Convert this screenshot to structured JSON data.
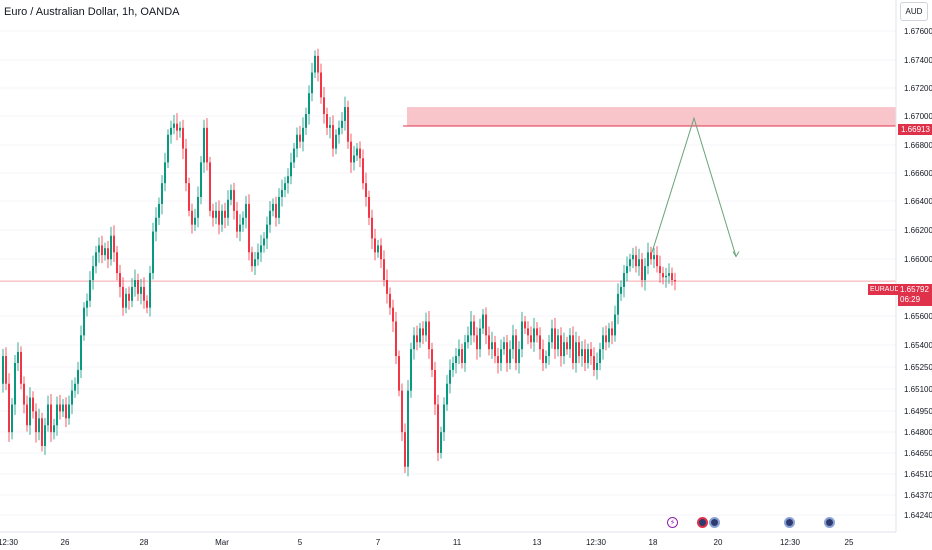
{
  "header": {
    "title": "Euro / Australian Dollar, 1h, OANDA"
  },
  "currency": "AUD",
  "symbol": "EURAUD",
  "last_price": {
    "value": "1.65792",
    "countdown": "06:29"
  },
  "zone_price": "1.66913",
  "colors": {
    "up": "#089981",
    "down": "#f23645",
    "zone": "#f8c5cb",
    "zone_line": "#e0314b",
    "projection": "#6aa37a",
    "last_line": "#f4a6ae"
  },
  "events": [
    {
      "type": "flash",
      "icon": "lightning-icon",
      "label": "⚡"
    },
    {
      "type": "flag",
      "icon": "eu-flag-icon",
      "label": ""
    },
    {
      "type": "dot",
      "icon": "event-dot-icon",
      "label": ""
    },
    {
      "type": "dot",
      "icon": "event-dot-icon",
      "label": ""
    },
    {
      "type": "dot",
      "icon": "event-dot-icon",
      "label": ""
    }
  ],
  "chart_data": {
    "type": "candlestick",
    "title": "Euro / Australian Dollar, 1h, OANDA",
    "ylim": [
      1.6424,
      1.677
    ],
    "y_ticks": [
      "1.67600",
      "1.67400",
      "1.67200",
      "1.67000",
      "1.66800",
      "1.66600",
      "1.66400",
      "1.66200",
      "1.66000",
      "1.65600",
      "1.65400",
      "1.65250",
      "1.65100",
      "1.64950",
      "1.64800",
      "1.64650",
      "1.64510",
      "1.64370",
      "1.64240"
    ],
    "y_tick_values": [
      1.676,
      1.674,
      1.672,
      1.67,
      1.668,
      1.666,
      1.664,
      1.662,
      1.66,
      1.656,
      1.654,
      1.6525,
      1.651,
      1.6495,
      1.648,
      1.6465,
      1.6451,
      1.6437,
      1.6424
    ],
    "x_ticks": [
      "12:30",
      "26",
      "28",
      "Mar",
      "5",
      "7",
      "11",
      "13",
      "12:30",
      "18",
      "20",
      "12:30",
      "25"
    ],
    "price_path": [
      [
        0,
        1.6505
      ],
      [
        3,
        1.6525
      ],
      [
        6,
        1.6505
      ],
      [
        9,
        1.647
      ],
      [
        12,
        1.649
      ],
      [
        15,
        1.652
      ],
      [
        18,
        1.6528
      ],
      [
        21,
        1.6505
      ],
      [
        24,
        1.649
      ],
      [
        27,
        1.6475
      ],
      [
        30,
        1.6495
      ],
      [
        33,
        1.6485
      ],
      [
        36,
        1.647
      ],
      [
        39,
        1.648
      ],
      [
        42,
        1.646
      ],
      [
        45,
        1.6475
      ],
      [
        48,
        1.649
      ],
      [
        51,
        1.647
      ],
      [
        54,
        1.6475
      ],
      [
        57,
        1.649
      ],
      [
        60,
        1.6485
      ],
      [
        63,
        1.649
      ],
      [
        66,
        1.648
      ],
      [
        69,
        1.649
      ],
      [
        72,
        1.65
      ],
      [
        75,
        1.6505
      ],
      [
        78,
        1.6515
      ],
      [
        81,
        1.654
      ],
      [
        84,
        1.656
      ],
      [
        87,
        1.6565
      ],
      [
        90,
        1.658
      ],
      [
        93,
        1.659
      ],
      [
        96,
        1.66
      ],
      [
        99,
        1.6605
      ],
      [
        102,
        1.6598
      ],
      [
        105,
        1.6603
      ],
      [
        108,
        1.6595
      ],
      [
        111,
        1.6612
      ],
      [
        114,
        1.66
      ],
      [
        117,
        1.6585
      ],
      [
        120,
        1.6575
      ],
      [
        123,
        1.656
      ],
      [
        126,
        1.657
      ],
      [
        129,
        1.6565
      ],
      [
        132,
        1.6575
      ],
      [
        135,
        1.658
      ],
      [
        138,
        1.657
      ],
      [
        141,
        1.6575
      ],
      [
        144,
        1.6565
      ],
      [
        147,
        1.656
      ],
      [
        150,
        1.6585
      ],
      [
        153,
        1.6615
      ],
      [
        156,
        1.6625
      ],
      [
        159,
        1.6635
      ],
      [
        162,
        1.665
      ],
      [
        165,
        1.6665
      ],
      [
        168,
        1.6685
      ],
      [
        171,
        1.669
      ],
      [
        174,
        1.6693
      ],
      [
        177,
        1.6688
      ],
      [
        180,
        1.669
      ],
      [
        183,
        1.6675
      ],
      [
        186,
        1.665
      ],
      [
        189,
        1.663
      ],
      [
        192,
        1.662
      ],
      [
        195,
        1.6625
      ],
      [
        198,
        1.664
      ],
      [
        201,
        1.6665
      ],
      [
        204,
        1.669
      ],
      [
        207,
        1.6665
      ],
      [
        210,
        1.663
      ],
      [
        213,
        1.6625
      ],
      [
        216,
        1.663
      ],
      [
        219,
        1.662
      ],
      [
        222,
        1.663
      ],
      [
        225,
        1.6625
      ],
      [
        228,
        1.6638
      ],
      [
        231,
        1.6645
      ],
      [
        234,
        1.663
      ],
      [
        237,
        1.6615
      ],
      [
        240,
        1.662
      ],
      [
        243,
        1.6625
      ],
      [
        246,
        1.6635
      ],
      [
        249,
        1.66
      ],
      [
        252,
        1.659
      ],
      [
        255,
        1.6595
      ],
      [
        258,
        1.66
      ],
      [
        261,
        1.6605
      ],
      [
        264,
        1.661
      ],
      [
        267,
        1.662
      ],
      [
        270,
        1.663
      ],
      [
        273,
        1.6635
      ],
      [
        276,
        1.6625
      ],
      [
        279,
        1.664
      ],
      [
        282,
        1.6645
      ],
      [
        285,
        1.665
      ],
      [
        288,
        1.6655
      ],
      [
        291,
        1.6665
      ],
      [
        294,
        1.6675
      ],
      [
        297,
        1.6685
      ],
      [
        300,
        1.668
      ],
      [
        303,
        1.669
      ],
      [
        306,
        1.67
      ],
      [
        309,
        1.6715
      ],
      [
        312,
        1.673
      ],
      [
        315,
        1.6742
      ],
      [
        318,
        1.673
      ],
      [
        321,
        1.6712
      ],
      [
        324,
        1.67
      ],
      [
        327,
        1.669
      ],
      [
        330,
        1.6692
      ],
      [
        333,
        1.6675
      ],
      [
        336,
        1.6685
      ],
      [
        339,
        1.669
      ],
      [
        342,
        1.6695
      ],
      [
        345,
        1.6705
      ],
      [
        348,
        1.668
      ],
      [
        351,
        1.6665
      ],
      [
        354,
        1.667
      ],
      [
        357,
        1.6675
      ],
      [
        360,
        1.6668
      ],
      [
        363,
        1.665
      ],
      [
        366,
        1.664
      ],
      [
        369,
        1.6625
      ],
      [
        372,
        1.661
      ],
      [
        375,
        1.66
      ],
      [
        378,
        1.6605
      ],
      [
        381,
        1.6595
      ],
      [
        384,
        1.658
      ],
      [
        387,
        1.657
      ],
      [
        390,
        1.656
      ],
      [
        393,
        1.655
      ],
      [
        396,
        1.6525
      ],
      [
        399,
        1.65
      ],
      [
        402,
        1.647
      ],
      [
        405,
        1.6445
      ],
      [
        408,
        1.65
      ],
      [
        411,
        1.653
      ],
      [
        414,
        1.654
      ],
      [
        417,
        1.6535
      ],
      [
        420,
        1.6545
      ],
      [
        423,
        1.654
      ],
      [
        426,
        1.655
      ],
      [
        429,
        1.653
      ],
      [
        432,
        1.6515
      ],
      [
        435,
        1.649
      ],
      [
        438,
        1.6455
      ],
      [
        441,
        1.647
      ],
      [
        444,
        1.649
      ],
      [
        447,
        1.6505
      ],
      [
        450,
        1.6515
      ],
      [
        453,
        1.652
      ],
      [
        456,
        1.6525
      ],
      [
        459,
        1.653
      ],
      [
        462,
        1.652
      ],
      [
        465,
        1.6535
      ],
      [
        468,
        1.654
      ],
      [
        471,
        1.655
      ],
      [
        474,
        1.654
      ],
      [
        477,
        1.653
      ],
      [
        480,
        1.6545
      ],
      [
        483,
        1.6555
      ],
      [
        486,
        1.654
      ],
      [
        489,
        1.653
      ],
      [
        492,
        1.6535
      ],
      [
        495,
        1.6525
      ],
      [
        498,
        1.652
      ],
      [
        501,
        1.653
      ],
      [
        504,
        1.6535
      ],
      [
        507,
        1.652
      ],
      [
        510,
        1.653
      ],
      [
        513,
        1.654
      ],
      [
        516,
        1.652
      ],
      [
        519,
        1.653
      ],
      [
        522,
        1.655
      ],
      [
        525,
        1.6545
      ],
      [
        528,
        1.654
      ],
      [
        531,
        1.6535
      ],
      [
        534,
        1.6545
      ],
      [
        537,
        1.654
      ],
      [
        540,
        1.653
      ],
      [
        543,
        1.652
      ],
      [
        546,
        1.6525
      ],
      [
        549,
        1.6535
      ],
      [
        552,
        1.6545
      ],
      [
        555,
        1.653
      ],
      [
        558,
        1.654
      ],
      [
        561,
        1.6525
      ],
      [
        564,
        1.6535
      ],
      [
        567,
        1.653
      ],
      [
        570,
        1.654
      ],
      [
        573,
        1.652
      ],
      [
        576,
        1.6535
      ],
      [
        579,
        1.6525
      ],
      [
        582,
        1.653
      ],
      [
        585,
        1.652
      ],
      [
        588,
        1.653
      ],
      [
        591,
        1.6525
      ],
      [
        594,
        1.6515
      ],
      [
        597,
        1.652
      ],
      [
        600,
        1.653
      ],
      [
        603,
        1.654
      ],
      [
        606,
        1.6535
      ],
      [
        609,
        1.6545
      ],
      [
        612,
        1.654
      ],
      [
        615,
        1.6555
      ],
      [
        618,
        1.657
      ],
      [
        621,
        1.6575
      ],
      [
        624,
        1.6585
      ],
      [
        627,
        1.659
      ],
      [
        630,
        1.6595
      ],
      [
        633,
        1.6598
      ],
      [
        636,
        1.659
      ],
      [
        639,
        1.6595
      ],
      [
        642,
        1.658
      ],
      [
        645,
        1.659
      ],
      [
        648,
        1.66
      ],
      [
        651,
        1.6595
      ],
      [
        654,
        1.6598
      ],
      [
        657,
        1.659
      ],
      [
        660,
        1.6585
      ],
      [
        663,
        1.6582
      ],
      [
        666,
        1.6583
      ],
      [
        669,
        1.6585
      ],
      [
        672,
        1.658
      ],
      [
        675,
        1.6579
      ]
    ],
    "resistance_zone": {
      "low": 1.66913,
      "high": 1.6705
    },
    "last_price": 1.65792,
    "projection": [
      [
        0,
        1.66
      ],
      [
        1,
        1.6697
      ],
      [
        2,
        1.6597
      ]
    ]
  }
}
